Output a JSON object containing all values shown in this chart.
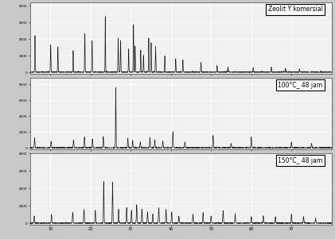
{
  "title1": "Zeolit Y komersial",
  "title2": "100°C_ 48 jam",
  "title3": "150°C_ 48 jam",
  "bg_color": "#c8c8c8",
  "plot_bg": "#f0f0f0",
  "line_color": "#1a1a1a",
  "grid_color": "#ffffff",
  "figsize": [
    4.21,
    3.01
  ],
  "dpi": 100
}
